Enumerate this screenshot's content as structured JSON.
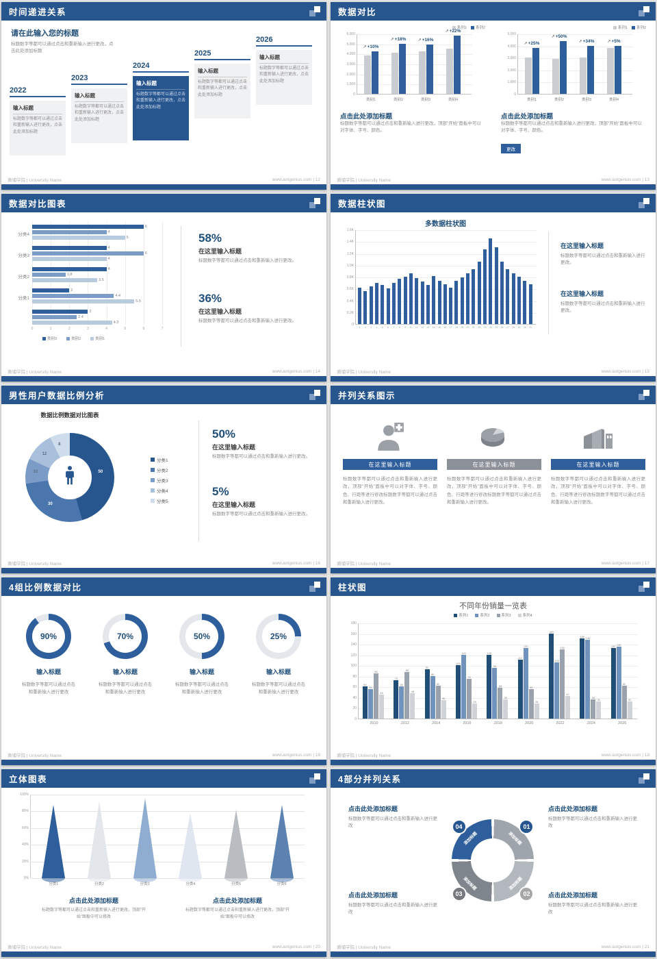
{
  "footer": {
    "left": "黄埔学院 | University Name"
  },
  "colors": {
    "header": "#27568f",
    "accent": "#2e5e9b",
    "gray_bar": "#c9cdd2"
  },
  "slides": {
    "s1": {
      "title": "时间递进关系",
      "page_label": "www.aotgenius.com | 12",
      "heading": "请在此输入您的标题",
      "heading_desc": "标题数字等都可以通过点击和重新输入进行更改，点击此处添加标题",
      "milestones": [
        {
          "year": "2022",
          "label": "输入标题",
          "desc": "标题数字等都可以通过点击和重新输入进行更改，点击此处添加标题",
          "highlight": false
        },
        {
          "year": "2023",
          "label": "输入标题",
          "desc": "标题数字等都可以通过点击和重新输入进行更改，点击此处添加标题",
          "highlight": false
        },
        {
          "year": "2024",
          "label": "输入标题",
          "desc": "标题数字等都可以通过点击和重新输入进行更改，点击此处添加标题",
          "highlight": true
        },
        {
          "year": "2025",
          "label": "输入标题",
          "desc": "标题数字等都可以通过点击和重新输入进行更改，点击此处添加标题",
          "highlight": false
        },
        {
          "year": "2026",
          "label": "输入标题",
          "desc": "标题数字等都可以通过点击和重新输入进行更改，点击此处添加标题",
          "highlight": false
        }
      ]
    },
    "s2": {
      "title": "数据对比",
      "page_label": "www.aotgenius.com | 13",
      "charts": [
        {
          "legend": [
            "系列1",
            "系列2"
          ],
          "categories": [
            "类别1",
            "类别2",
            "类别3",
            "类别4"
          ],
          "series1": [
            3800,
            4100,
            4200,
            4500
          ],
          "series2": [
            4200,
            5000,
            4900,
            5800
          ],
          "growth": [
            "+10%",
            "+18%",
            "+16%",
            "+22%"
          ],
          "ymax": 6000,
          "yticks": [
            "6,000",
            "5,000",
            "4,000",
            "3,000",
            "2,000",
            "1,000",
            "0"
          ],
          "heading": "点击此处添加标题",
          "desc": "标题数字等都可以通过点击和重新输入进行更改，顶部“开始”面板中可以对字体、字号、颜色。",
          "button": ""
        },
        {
          "legend": [
            "系列1",
            "系列2"
          ],
          "categories": [
            "类别1",
            "类别2",
            "类别3",
            "类别4"
          ],
          "series1": [
            3000,
            2900,
            3000,
            3800
          ],
          "series2": [
            3800,
            4400,
            4000,
            4000
          ],
          "growth": [
            "+25%",
            "+50%",
            "+34%",
            "+5%"
          ],
          "ymax": 5000,
          "yticks": [
            "5,000",
            "4,000",
            "3,000",
            "2,000",
            "1,000",
            "0"
          ],
          "heading": "点击此处添加标题",
          "desc": "标题数字等都可以通过点击和重新输入进行更改，顶部“开始”面板中可以对字体、字号、颜色。",
          "button": "更改"
        }
      ]
    },
    "s3": {
      "title": "数据对比图表",
      "page_label": "www.aotgenius.com | 14",
      "chart": {
        "groups": [
          {
            "label": "分类4",
            "values": [
              6,
              4,
              5
            ]
          },
          {
            "label": "分类3",
            "values": [
              4,
              6,
              4
            ]
          },
          {
            "label": "分类2",
            "values": [
              4,
              1.8,
              3.5
            ]
          },
          {
            "label": "分类1",
            "values": [
              2,
              4.4,
              5.5
            ]
          },
          {
            "label": "",
            "values": [
              3,
              2.4,
              4.3
            ]
          }
        ],
        "xticks": [
          0,
          1,
          2,
          3,
          4,
          5,
          6,
          7
        ],
        "legend": [
          "类别3",
          "类别2",
          "类别1"
        ],
        "colors": [
          "#2e5e9b",
          "#7b9cc6",
          "#b7cade"
        ]
      },
      "stats": [
        {
          "value": "58%",
          "label": "在这里输入标题",
          "desc": "标题数字等都可以通过点击和重新输入进行更改。"
        },
        {
          "value": "36%",
          "label": "在这里输入标题",
          "desc": "标题数字等都可以通过点击和重新输入进行更改。"
        }
      ]
    },
    "s4": {
      "title": "数据柱状图",
      "page_label": "www.aotgenius.com | 15",
      "chart": {
        "title": "多数据柱状图",
        "values": [
          620,
          560,
          640,
          700,
          660,
          600,
          700,
          760,
          800,
          860,
          780,
          720,
          660,
          810,
          730,
          670,
          610,
          730,
          790,
          860,
          930,
          1060,
          1260,
          1450,
          1300,
          1060,
          930,
          860,
          800,
          730,
          670
        ],
        "yticks": [
          "1.6K",
          "1.4K",
          "1.2K",
          "1.0K",
          "0.8K",
          "0.6K",
          "0.4K",
          "0.2K",
          "0"
        ],
        "ymax": 1600
      },
      "notes": [
        {
          "label": "在这里输入标题",
          "desc": "标题数字等都可以通过点击和重新输入进行更改。"
        },
        {
          "label": "在这里输入标题",
          "desc": "标题数字等都可以通过点击和重新输入进行更改。"
        }
      ]
    },
    "s5": {
      "title": "男性用户数据比例分析",
      "page_label": "www.aotgenius.com | 16",
      "chart": {
        "title": "数据比例数据对比图表",
        "slices": [
          {
            "label": "分类1",
            "value": 50
          },
          {
            "label": "分类2",
            "value": 30
          },
          {
            "label": "分类3",
            "value": 10
          },
          {
            "label": "分类4",
            "value": 12
          },
          {
            "label": "分类5",
            "value": 8
          }
        ],
        "colors": [
          "#27568f",
          "#4a76ad",
          "#7b9cc6",
          "#a9c0dc",
          "#cfdcec"
        ]
      },
      "stats": [
        {
          "value": "50%",
          "label": "在这里输入标题",
          "desc": "标题数字等都可以通过点击和重新输入进行更改。"
        },
        {
          "value": "5%",
          "label": "在这里输入标题",
          "desc": "标题数字等都可以通过点击和重新输入进行更改。"
        }
      ]
    },
    "s6": {
      "title": "并列关系图示",
      "page_label": "www.aotgenius.com | 17",
      "items": [
        {
          "icon": "nurse-icon",
          "label": "在这里输入标题",
          "accent": true,
          "desc": "标题数字等都可以通过点击和重新输入进行更改，顶部“开始”面板中可以对字体、字号、颜色、行距等进行修改标题数字等都可以通过点击和重新输入进行更改。"
        },
        {
          "icon": "pie-3d-icon",
          "label": "在这里输入标题",
          "accent": false,
          "desc": "标题数字等都可以通过点击和重新输入进行更改，顶部“开始”面板中可以对字体、字号、颜色、行距等进行修改标题数字等都可以通过点击和重新输入进行更改。"
        },
        {
          "icon": "building-icon",
          "label": "在这里输入标题",
          "accent": true,
          "desc": "标题数字等都可以通过点击和重新输入进行更改，顶部“开始”面板中可以对字体、字号、颜色、行距等进行修改标题数字等都可以通过点击和重新输入进行更改。"
        }
      ]
    },
    "s7": {
      "title": "4组比例数据对比",
      "page_label": "www.aotgenius.com | 18",
      "rings": [
        {
          "percent": 90,
          "value": "90%",
          "label": "输入标题",
          "desc": "标题数字等都可以通过点击和重新输入进行更改"
        },
        {
          "percent": 70,
          "value": "70%",
          "label": "输入标题",
          "desc": "标题数字等都可以通过点击和重新输入进行更改"
        },
        {
          "percent": 50,
          "value": "50%",
          "label": "输入标题",
          "desc": "标题数字等都可以通过点击和重新输入进行更改"
        },
        {
          "percent": 25,
          "value": "25%",
          "label": "输入标题",
          "desc": "标题数字等都可以通过点击和重新输入进行更改"
        }
      ]
    },
    "s8": {
      "title": "柱状图",
      "page_label": "www.aotgenius.com | 19",
      "chart": {
        "title": "不同年份销量一览表",
        "legend": [
          "系列1",
          "系列2",
          "系列3",
          "系列4"
        ],
        "colors": [
          "#1f4e79",
          "#6f93bd",
          "#9aa3ad",
          "#cfd3d8"
        ],
        "categories": [
          "2010",
          "2012",
          "2014",
          "2016",
          "2018",
          "2020",
          "2022",
          "2024",
          "2026"
        ],
        "series": [
          {
            "name": "系列1",
            "values": [
              60,
              72,
              92,
              100,
              120,
              110,
              160,
              150,
              132
            ]
          },
          {
            "name": "系列2",
            "values": [
              55,
              60,
              80,
              120,
              95,
              133,
              105,
              148,
              135
            ]
          },
          {
            "name": "系列3",
            "values": [
              85,
              88,
              62,
              75,
              58,
              55,
              130,
              36,
              62
            ]
          },
          {
            "name": "系列4",
            "values": [
              45,
              48,
              35,
              28,
              36,
              28,
              42,
              32,
              32
            ]
          }
        ],
        "ymax": 180,
        "ystep": 20
      }
    },
    "s9": {
      "title": "立体图表",
      "page_label": "www.aotgenius.com | 20",
      "chart": {
        "categories": [
          "分类1",
          "分类2",
          "分类3",
          "分类4",
          "分类5",
          "分类6"
        ],
        "values": [
          88,
          92,
          96,
          78,
          82,
          88
        ],
        "colors": [
          "#2e5e9b",
          "#e3e6ea",
          "#8fadd0",
          "#dfe6f0",
          "#b9bdc2",
          "#5b82b0"
        ],
        "yticks": [
          "100%",
          "80%",
          "60%",
          "40%",
          "20%",
          "0%"
        ]
      },
      "notes": [
        {
          "label": "点击此处添加标题",
          "desc": "标题数字等都可以通过点击和重新输入进行更改，顶部“开始”图板中可以修改"
        },
        {
          "label": "点击此处添加标题",
          "desc": "标题数字等都可以通过点击和重新输入进行更改，顶部“开始”面板中可以修改"
        }
      ]
    },
    "s10": {
      "title": "4部分并列关系",
      "page_label": "www.aotgenius.com | 21",
      "segments": [
        {
          "num": "01",
          "label": "添加标题",
          "ring": "#9fa5ad",
          "badge": "#27568f"
        },
        {
          "num": "02",
          "label": "添加标题",
          "ring": "#b3b8bf",
          "badge": "#a6a6a6"
        },
        {
          "num": "03",
          "label": "添加标题",
          "ring": "#7f858d",
          "badge": "#75797f"
        },
        {
          "num": "04",
          "label": "添加标题",
          "ring": "#2e5e9b",
          "badge": "#27568f"
        }
      ],
      "notes": [
        {
          "label": "点击此处添加标题",
          "desc": "标题数字等都可以通过点击和重新输入进行更改"
        },
        {
          "label": "点击此处添加标题",
          "desc": "标题数字等都可以通过点击和重新输入进行更改"
        },
        {
          "label": "点击此处添加标题",
          "desc": "标题数字等都可以通过点击和重新输入进行更改"
        },
        {
          "label": "点击此处添加标题",
          "desc": "标题数字等都可以通过点击和重新输入进行更改"
        }
      ]
    }
  }
}
